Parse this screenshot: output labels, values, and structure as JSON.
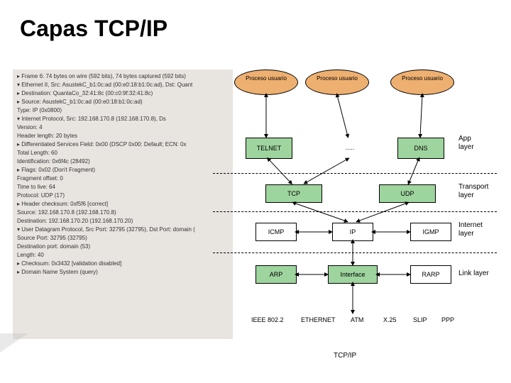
{
  "title": "Capas TCP/IP",
  "packet_lines": [
    "▸ Frame 6: 74 bytes on wire (592 bits), 74 bytes captured (592 bits)",
    "▾ Ethernet II, Src: AsustekC_b1:0c:ad (00:e0:18:b1:0c:ad), Dst: Quant",
    "  ▸ Destination: QuantaCo_32:41:8c (00:c0:9f:32:41:8c)",
    "  ▸ Source: AsustekC_b1:0c:ad (00:e0:18:b1:0c:ad)",
    "    Type: IP (0x0800)",
    "▾ Internet Protocol, Src: 192.168.170.8 (192.168.170.8), Ds",
    "    Version: 4",
    "    Header length: 20 bytes",
    "  ▸ Differentiated Services Field: 0x00 (DSCP 0x00: Default; ECN: 0x",
    "    Total Length: 60",
    "    Identification: 0x6f4c (28492)",
    "  ▸ Flags: 0x02 (Don't Fragment)",
    "    Fragment offset: 0",
    "    Time to live: 64",
    "    Protocol: UDP (17)",
    "  ▸ Header checksum: 0xf5f6 [correct]",
    "    Source: 192.168.170.8 (192.168.170.8)",
    "    Destination: 192.168.170.20 (192.168.170.20)",
    "▾ User Datagram Protocol, Src Port: 32795 (32795), Dst Port: domain (",
    "    Source Port: 32795 (32795)",
    "    Destination port: domain (53)",
    "    Length: 40",
    "  ▸ Checksum: 0x3432 [validation disabled]",
    "▸ Domain Name System (query)"
  ],
  "processes": {
    "p1": "Proceso usuario",
    "p2": "Proceso usuario",
    "p3": "Proceso usuario"
  },
  "app_layer": {
    "telnet": "TELNET",
    "dots": ".....",
    "dns": "DNS",
    "label": "App\nlayer"
  },
  "transport_layer": {
    "tcp": "TCP",
    "udp": "UDP",
    "label": "Transport\nlayer"
  },
  "internet_layer": {
    "icmp": "ICMP",
    "ip": "IP",
    "igmp": "IGMP",
    "label": "Internet\nlayer"
  },
  "link_layer": {
    "arp": "ARP",
    "iface": "Interface",
    "rarp": "RARP",
    "label": "Link layer"
  },
  "physical": {
    "ieee": "IEEE 802.2",
    "eth": "ETHERNET",
    "atm": "ATM",
    "x25": "X.25",
    "slip": "SLIP",
    "ppp": "PPP"
  },
  "bottom": "TCP/IP",
  "colors": {
    "oval_fill": "#eeb070",
    "green_fill": "#9ed49e",
    "dash": "#000000",
    "bg": "#ffffff"
  }
}
